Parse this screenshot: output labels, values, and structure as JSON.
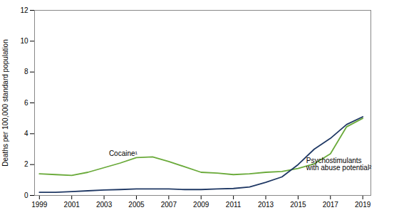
{
  "chart_data": {
    "type": "line",
    "x": [
      1999,
      2000,
      2001,
      2002,
      2003,
      2004,
      2005,
      2006,
      2007,
      2008,
      2009,
      2010,
      2011,
      2012,
      2013,
      2014,
      2015,
      2016,
      2017,
      2018,
      2019
    ],
    "series": [
      {
        "name": "Cocaine¹",
        "color": "#6aaa3a",
        "values": [
          1.4,
          1.35,
          1.3,
          1.5,
          1.8,
          2.1,
          2.45,
          2.5,
          2.2,
          1.85,
          1.5,
          1.45,
          1.35,
          1.4,
          1.5,
          1.55,
          1.75,
          2.05,
          2.7,
          4.45,
          5.0
        ]
      },
      {
        "name": "Psychostimulants\nwith abuse potential²",
        "color": "#1f3864",
        "values": [
          0.2,
          0.2,
          0.25,
          0.3,
          0.35,
          0.38,
          0.42,
          0.42,
          0.42,
          0.38,
          0.38,
          0.42,
          0.45,
          0.55,
          0.85,
          1.2,
          2.0,
          3.0,
          3.7,
          4.6,
          5.1
        ]
      }
    ],
    "annotations": [
      {
        "text": "Cocaine¹",
        "x": 2003.3,
        "y": 2.55
      },
      {
        "text": "Psychostimulants\nwith abuse potential²",
        "x": 2015.5,
        "y": 2.0
      }
    ],
    "ylabel": "Deaths per 100,000 standard population",
    "xlim": [
      1998.7,
      2019.5
    ],
    "xticks": [
      1999,
      2001,
      2003,
      2005,
      2007,
      2009,
      2011,
      2013,
      2015,
      2017,
      2019
    ],
    "ylim": [
      0,
      12
    ],
    "yticks": [
      0,
      2,
      4,
      6,
      8,
      10,
      12
    ],
    "grid": false
  }
}
